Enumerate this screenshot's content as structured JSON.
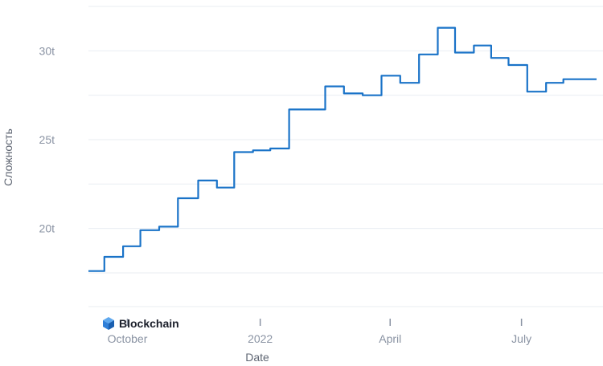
{
  "chart_data": {
    "type": "line",
    "title": "",
    "xlabel": "Date",
    "ylabel": "Сложность",
    "ylim": [
      15.6,
      32.5
    ],
    "xlim": [
      "2021-09-04",
      "2022-08-22"
    ],
    "y_ticks": [
      {
        "value": 20,
        "label": "20t"
      },
      {
        "value": 25,
        "label": "25t"
      },
      {
        "value": 30,
        "label": "30t"
      }
    ],
    "x_ticks": [
      {
        "date": "2021-10-01",
        "label": "October"
      },
      {
        "date": "2022-01-01",
        "label": "2022"
      },
      {
        "date": "2022-04-01",
        "label": "April"
      },
      {
        "date": "2022-07-01",
        "label": "July"
      }
    ],
    "grid": true,
    "line_color": "#1a73c8",
    "series": [
      {
        "step": true,
        "points": [
          {
            "date": "2021-09-04",
            "value": 17.6
          },
          {
            "date": "2021-09-15",
            "value": 18.4
          },
          {
            "date": "2021-09-28",
            "value": 19.0
          },
          {
            "date": "2021-10-10",
            "value": 19.9
          },
          {
            "date": "2021-10-23",
            "value": 20.1
          },
          {
            "date": "2021-11-05",
            "value": 21.7
          },
          {
            "date": "2021-11-19",
            "value": 22.7
          },
          {
            "date": "2021-12-02",
            "value": 22.3
          },
          {
            "date": "2021-12-14",
            "value": 24.3
          },
          {
            "date": "2021-12-27",
            "value": 24.4
          },
          {
            "date": "2022-01-08",
            "value": 24.5
          },
          {
            "date": "2022-01-21",
            "value": 26.7
          },
          {
            "date": "2022-02-02",
            "value": 26.7
          },
          {
            "date": "2022-02-15",
            "value": 28.0
          },
          {
            "date": "2022-02-28",
            "value": 27.6
          },
          {
            "date": "2022-03-13",
            "value": 27.5
          },
          {
            "date": "2022-03-26",
            "value": 28.6
          },
          {
            "date": "2022-04-08",
            "value": 28.2
          },
          {
            "date": "2022-04-21",
            "value": 29.8
          },
          {
            "date": "2022-05-04",
            "value": 31.3
          },
          {
            "date": "2022-05-16",
            "value": 29.9
          },
          {
            "date": "2022-05-29",
            "value": 30.3
          },
          {
            "date": "2022-06-10",
            "value": 29.6
          },
          {
            "date": "2022-06-22",
            "value": 29.2
          },
          {
            "date": "2022-07-05",
            "value": 27.7
          },
          {
            "date": "2022-07-18",
            "value": 28.2
          },
          {
            "date": "2022-07-30",
            "value": 28.4
          },
          {
            "date": "2022-08-22",
            "value": 28.4
          }
        ]
      }
    ]
  },
  "branding": {
    "name": "Blockchain",
    "icon": "blockchain-cube-icon",
    "icon_colors": [
      "#2f7fd8",
      "#5fa8ee",
      "#1a5fb0"
    ]
  }
}
